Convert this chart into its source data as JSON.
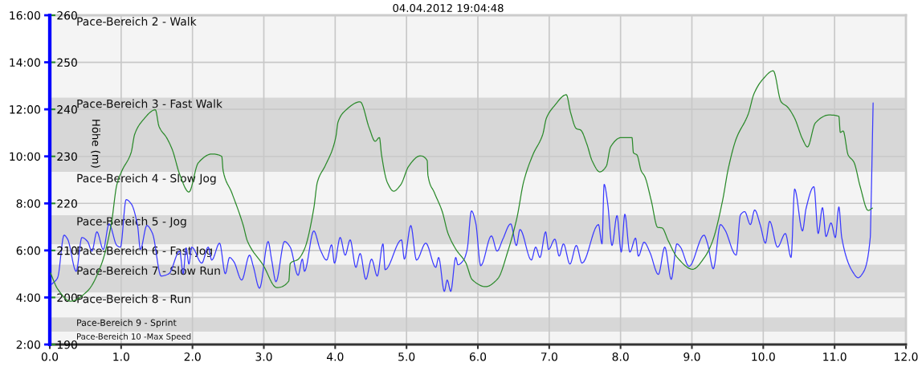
{
  "chart_data": {
    "type": "line",
    "title": "04.04.2012 19:04:48",
    "y2label": "Höhe (m)",
    "xlim": [
      0,
      12
    ],
    "xticks": [
      {
        "value": 0,
        "label": "0.0"
      },
      {
        "value": 1,
        "label": "1.0"
      },
      {
        "value": 2,
        "label": "2.0"
      },
      {
        "value": 3,
        "label": "3.0"
      },
      {
        "value": 4,
        "label": "4.0"
      },
      {
        "value": 5,
        "label": "5.0"
      },
      {
        "value": 6,
        "label": "6.0"
      },
      {
        "value": 7,
        "label": "7.0"
      },
      {
        "value": 8,
        "label": "8.0"
      },
      {
        "value": 9,
        "label": "9.0"
      },
      {
        "value": 10,
        "label": "10.0"
      },
      {
        "value": 11,
        "label": "11.0"
      },
      {
        "value": 12,
        "label": "12.0"
      }
    ],
    "ylim": [
      2,
      16
    ],
    "yticks": [
      {
        "value": 2,
        "label": "2:00"
      },
      {
        "value": 4,
        "label": "4:00"
      },
      {
        "value": 6,
        "label": "6:00"
      },
      {
        "value": 8,
        "label": "8:00"
      },
      {
        "value": 10,
        "label": "10:00"
      },
      {
        "value": 12,
        "label": "12:00"
      },
      {
        "value": 14,
        "label": "14:00"
      },
      {
        "value": 16,
        "label": "16:00"
      }
    ],
    "y2lim": [
      190,
      260
    ],
    "y2ticks": [
      190,
      200,
      210,
      220,
      230,
      240,
      250,
      260
    ],
    "grid": true,
    "bands": [
      {
        "axis": "y",
        "from": 12.5,
        "to": 16,
        "label": "Pace-Bereich 2 - Walk",
        "color": "#f4f4f4"
      },
      {
        "axis": "y",
        "from": 9.33,
        "to": 12.5,
        "label": "Pace-Bereich 3 - Fast Walk",
        "color": "#d7d7d7"
      },
      {
        "axis": "y",
        "from": 7.5,
        "to": 9.33,
        "label": "Pace-Bereich 4 - Slow Jog",
        "color": "#f4f4f4"
      },
      {
        "axis": "y",
        "from": 6.25,
        "to": 7.5,
        "label": "Pace-Bereich 5 - Jog",
        "color": "#d7d7d7"
      },
      {
        "axis": "y",
        "from": 5.4,
        "to": 6.25,
        "label": "Pace-Bereich 6 - Fast Jog",
        "color": "#f4f4f4"
      },
      {
        "axis": "y",
        "from": 4.2,
        "to": 5.4,
        "label": "Pace-Bereich 7 - Slow Run",
        "color": "#d7d7d7"
      },
      {
        "axis": "y",
        "from": 3.15,
        "to": 4.2,
        "label": "Pace-Bereich 8 - Run",
        "color": "#f4f4f4"
      },
      {
        "axis": "y",
        "from": 2.55,
        "to": 3.15,
        "label": "Pace-Bereich 9 - Sprint",
        "color": "#d7d7d7"
      },
      {
        "axis": "y",
        "from": 2,
        "to": 2.55,
        "label": "Pace-Bereich 10 -Max Speed",
        "color": "#f4f4f4"
      }
    ],
    "series": [
      {
        "color": "#3a3aff",
        "x": [
          0.03,
          0.11,
          0.2,
          0.25,
          0.37,
          0.45,
          0.53,
          0.59,
          0.66,
          0.75,
          0.83,
          0.94,
          0.99,
          1.07,
          1.14,
          1.23,
          1.27,
          1.36,
          1.44,
          1.56,
          1.67,
          1.82,
          1.87,
          1.91,
          1.95,
          1.99,
          2.13,
          2.22,
          2.27,
          2.38,
          2.46,
          2.52,
          2.58,
          2.69,
          2.8,
          2.85,
          2.94,
          3.06,
          3.11,
          3.17,
          3.29,
          3.37,
          3.48,
          3.54,
          3.57,
          3.7,
          3.79,
          3.88,
          3.95,
          3.99,
          4.07,
          4.14,
          4.21,
          4.29,
          4.35,
          4.43,
          4.51,
          4.59,
          4.67,
          4.7,
          4.93,
          4.97,
          5.06,
          5.14,
          5.27,
          5.41,
          5.45,
          5.53,
          5.57,
          5.62,
          5.69,
          5.72,
          5.8,
          5.85,
          5.91,
          5.97,
          6.04,
          6.19,
          6.27,
          6.35,
          6.46,
          6.54,
          6.59,
          6.75,
          6.81,
          6.87,
          6.95,
          6.99,
          7.08,
          7.14,
          7.2,
          7.29,
          7.38,
          7.46,
          7.69,
          7.74,
          7.77,
          7.82,
          7.88,
          7.95,
          8.01,
          8.06,
          8.13,
          8.21,
          8.25,
          8.33,
          8.41,
          8.53,
          8.62,
          8.71,
          8.79,
          8.84,
          8.96,
          9.17,
          9.22,
          9.3,
          9.4,
          9.46,
          9.62,
          9.68,
          9.74,
          9.82,
          9.88,
          9.96,
          10.03,
          10.09,
          10.2,
          10.31,
          10.39,
          10.44,
          10.55,
          10.6,
          10.71,
          10.77,
          10.83,
          10.88,
          10.95,
          11.01,
          11.06,
          11.1,
          11.25,
          11.33,
          11.39,
          11.5,
          11.51,
          11.54
        ],
        "values": [
          4.57,
          4.84,
          6.65,
          6.48,
          5.11,
          6.55,
          6.38,
          5.97,
          6.79,
          6.04,
          7.13,
          6.21,
          6.14,
          8.16,
          7.99,
          7.06,
          6.04,
          7.06,
          6.72,
          4.91,
          5.01,
          5.97,
          5.01,
          6.11,
          5.42,
          6.14,
          5.46,
          6.14,
          5.59,
          6.31,
          5.01,
          5.7,
          5.52,
          4.74,
          5.8,
          5.35,
          4.39,
          6.38,
          5.59,
          4.67,
          6.38,
          6.14,
          4.94,
          5.63,
          5.11,
          6.83,
          6.04,
          5.59,
          6.24,
          5.46,
          6.55,
          5.8,
          6.45,
          5.28,
          5.87,
          4.77,
          5.63,
          4.91,
          6.28,
          5.18,
          6.45,
          5.63,
          7.06,
          5.59,
          6.31,
          5.28,
          5.7,
          4.26,
          4.74,
          4.26,
          5.7,
          5.39,
          5.59,
          6.04,
          7.68,
          7.17,
          5.35,
          6.62,
          5.97,
          6.48,
          7.13,
          6.21,
          6.89,
          5.59,
          6.14,
          5.7,
          6.79,
          6.04,
          6.48,
          5.76,
          6.28,
          5.42,
          6.21,
          5.46,
          7.1,
          6.28,
          8.81,
          7.99,
          6.21,
          7.48,
          5.93,
          7.54,
          5.93,
          6.52,
          5.76,
          6.35,
          5.93,
          4.98,
          6.14,
          4.77,
          6.28,
          6.14,
          5.32,
          6.65,
          6.28,
          5.22,
          7.1,
          6.89,
          5.8,
          7.51,
          7.65,
          7.1,
          7.72,
          7.06,
          6.31,
          7.24,
          6.14,
          6.72,
          5.7,
          8.61,
          6.83,
          7.78,
          8.71,
          6.72,
          7.82,
          6.59,
          7.17,
          6.55,
          7.85,
          6.55,
          5.11,
          4.84,
          5.01,
          6.55,
          7.75,
          12.27
        ]
      },
      {
        "axis": "y2",
        "color": "#2b8a2b",
        "x": [
          0.01,
          0.11,
          0.29,
          0.53,
          0.72,
          0.86,
          0.94,
          1.01,
          1.14,
          1.19,
          1.3,
          1.48,
          1.53,
          1.64,
          1.72,
          1.82,
          1.95,
          2.08,
          2.27,
          2.41,
          2.43,
          2.55,
          2.71,
          2.77,
          2.99,
          3.18,
          3.35,
          3.37,
          3.48,
          3.57,
          3.7,
          3.75,
          3.86,
          3.96,
          4.01,
          4.04,
          4.14,
          4.35,
          4.48,
          4.56,
          4.62,
          4.65,
          4.73,
          4.82,
          4.92,
          5.03,
          5.19,
          5.29,
          5.3,
          5.39,
          5.5,
          5.58,
          5.69,
          5.83,
          5.92,
          6.11,
          6.28,
          6.42,
          6.55,
          6.64,
          6.77,
          6.91,
          6.96,
          7.07,
          7.24,
          7.3,
          7.38,
          7.44,
          7.53,
          7.6,
          7.71,
          7.8,
          7.86,
          8.01,
          8.16,
          8.18,
          8.23,
          8.29,
          8.34,
          8.43,
          8.52,
          8.58,
          8.67,
          8.79,
          9.01,
          9.18,
          9.29,
          9.43,
          9.51,
          9.62,
          9.79,
          9.87,
          10.0,
          10.14,
          10.25,
          10.34,
          10.44,
          10.55,
          10.62,
          10.73,
          10.92,
          11.06,
          11.08,
          11.12,
          11.19,
          11.27,
          11.36,
          11.47,
          11.53
        ],
        "values": [
          205.2,
          201.8,
          199.2,
          201.4,
          206.9,
          215.4,
          224.0,
          226.9,
          230.8,
          234.7,
          237.6,
          239.9,
          236.4,
          233.9,
          231.3,
          226.2,
          222.4,
          228.6,
          230.5,
          230.0,
          226.9,
          222.3,
          215.4,
          212.0,
          206.9,
          202.1,
          203.5,
          207.2,
          208.1,
          210.3,
          218.9,
          224.5,
          228.0,
          231.4,
          234.2,
          237.3,
          239.7,
          241.6,
          235.9,
          233.2,
          234.0,
          230.3,
          224.5,
          222.6,
          224.0,
          227.9,
          230.1,
          229.1,
          226.0,
          222.3,
          218.3,
          213.7,
          210.3,
          207.4,
          203.8,
          202.3,
          204.0,
          209.8,
          217.1,
          224.5,
          230.3,
          234.7,
          238.1,
          240.7,
          243.1,
          239.3,
          235.9,
          235.6,
          232.5,
          229.1,
          226.7,
          227.9,
          232.0,
          234.0,
          234.0,
          230.8,
          230.3,
          226.9,
          225.7,
          220.6,
          214.9,
          214.8,
          212.0,
          208.6,
          206.0,
          208.6,
          212.0,
          220.6,
          227.4,
          233.7,
          239.0,
          243.3,
          246.5,
          248.2,
          241.6,
          240.5,
          238.1,
          233.7,
          232.0,
          237.1,
          238.8,
          238.5,
          235.1,
          235.4,
          230.3,
          228.8,
          223.5,
          218.5,
          219.0
        ]
      }
    ]
  }
}
